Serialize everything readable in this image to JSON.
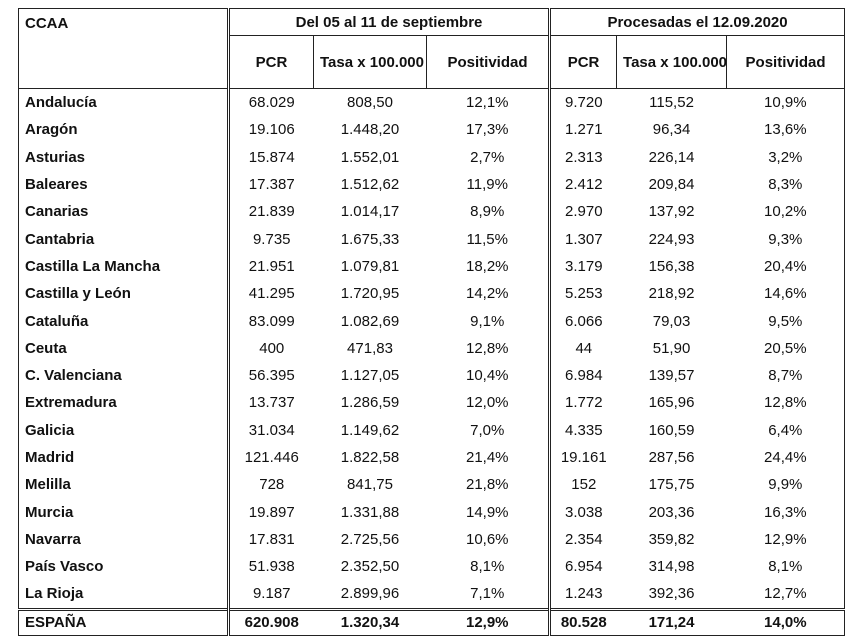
{
  "table": {
    "headers": {
      "region": "CCAA",
      "group1": "Del 05 al 11 de septiembre",
      "group2": "Procesadas el 12.09.2020",
      "columns": [
        "PCR",
        "Tasa x 100.000",
        "Positividad",
        "PCR",
        "Tasa x 100.000",
        "Positividad"
      ]
    },
    "rows": [
      [
        "Andalucía",
        "68.029",
        "808,50",
        "12,1%",
        "9.720",
        "115,52",
        "10,9%"
      ],
      [
        "Aragón",
        "19.106",
        "1.448,20",
        "17,3%",
        "1.271",
        "96,34",
        "13,6%"
      ],
      [
        "Asturias",
        "15.874",
        "1.552,01",
        "2,7%",
        "2.313",
        "226,14",
        "3,2%"
      ],
      [
        "Baleares",
        "17.387",
        "1.512,62",
        "11,9%",
        "2.412",
        "209,84",
        "8,3%"
      ],
      [
        "Canarias",
        "21.839",
        "1.014,17",
        "8,9%",
        "2.970",
        "137,92",
        "10,2%"
      ],
      [
        "Cantabria",
        "9.735",
        "1.675,33",
        "11,5%",
        "1.307",
        "224,93",
        "9,3%"
      ],
      [
        "Castilla La Mancha",
        "21.951",
        "1.079,81",
        "18,2%",
        "3.179",
        "156,38",
        "20,4%"
      ],
      [
        "Castilla y León",
        "41.295",
        "1.720,95",
        "14,2%",
        "5.253",
        "218,92",
        "14,6%"
      ],
      [
        "Cataluña",
        "83.099",
        "1.082,69",
        "9,1%",
        "6.066",
        "79,03",
        "9,5%"
      ],
      [
        "Ceuta",
        "400",
        "471,83",
        "12,8%",
        "44",
        "51,90",
        "20,5%"
      ],
      [
        "C. Valenciana",
        "56.395",
        "1.127,05",
        "10,4%",
        "6.984",
        "139,57",
        "8,7%"
      ],
      [
        "Extremadura",
        "13.737",
        "1.286,59",
        "12,0%",
        "1.772",
        "165,96",
        "12,8%"
      ],
      [
        "Galicia",
        "31.034",
        "1.149,62",
        "7,0%",
        "4.335",
        "160,59",
        "6,4%"
      ],
      [
        "Madrid",
        "121.446",
        "1.822,58",
        "21,4%",
        "19.161",
        "287,56",
        "24,4%"
      ],
      [
        "Melilla",
        "728",
        "841,75",
        "21,8%",
        "152",
        "175,75",
        "9,9%"
      ],
      [
        "Murcia",
        "19.897",
        "1.331,88",
        "14,9%",
        "3.038",
        "203,36",
        "16,3%"
      ],
      [
        "Navarra",
        "17.831",
        "2.725,56",
        "10,6%",
        "2.354",
        "359,82",
        "12,9%"
      ],
      [
        "País Vasco",
        "51.938",
        "2.352,50",
        "8,1%",
        "6.954",
        "314,98",
        "8,1%"
      ],
      [
        "La Rioja",
        "9.187",
        "2.899,96",
        "7,1%",
        "1.243",
        "392,36",
        "12,7%"
      ]
    ],
    "total": [
      "ESPAÑA",
      "620.908",
      "1.320,34",
      "12,9%",
      "80.528",
      "171,24",
      "14,0%"
    ]
  }
}
